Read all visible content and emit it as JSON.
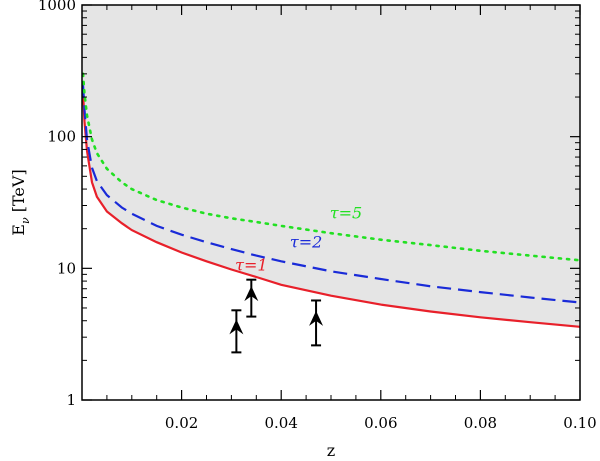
{
  "chart_data": {
    "type": "line",
    "xlabel": "z",
    "ylabel": "E",
    "ylabel_sub": "ν",
    "ylabel_unit": " [TeV]",
    "xlim": [
      0.0,
      0.1
    ],
    "ylim": [
      1,
      1000
    ],
    "yscale": "log",
    "grid": false,
    "x_ticks": [
      {
        "value": 0.02,
        "label": "0.02"
      },
      {
        "value": 0.04,
        "label": "0.04"
      },
      {
        "value": 0.06,
        "label": "0.06"
      },
      {
        "value": 0.08,
        "label": "0.08"
      },
      {
        "value": 0.1,
        "label": "0.10"
      }
    ],
    "y_ticks": [
      {
        "value": 1,
        "label": "1"
      },
      {
        "value": 10,
        "label": "10"
      },
      {
        "value": 100,
        "label": "100"
      },
      {
        "value": 1000,
        "label": "1000"
      }
    ],
    "shaded_region": {
      "above_series": "τ=1",
      "color": "#e5e5e5"
    },
    "series": [
      {
        "name": "τ=1",
        "color": "#e8202a",
        "style": "solid",
        "label_at": {
          "x": 0.034,
          "y": 9.6
        },
        "x": [
          0.0002,
          0.0005,
          0.001,
          0.002,
          0.003,
          0.005,
          0.008,
          0.01,
          0.015,
          0.02,
          0.025,
          0.03,
          0.035,
          0.04,
          0.05,
          0.06,
          0.07,
          0.08,
          0.09,
          0.1
        ],
        "y": [
          220,
          130,
          78,
          45,
          35,
          27,
          22,
          19.5,
          15.8,
          13.2,
          11.3,
          9.8,
          8.6,
          7.5,
          6.2,
          5.3,
          4.7,
          4.25,
          3.9,
          3.6
        ]
      },
      {
        "name": "τ=2",
        "color": "#1a2bd8",
        "style": "dashed",
        "label_at": {
          "x": 0.045,
          "y": 14.4
        },
        "x": [
          0.0002,
          0.0005,
          0.001,
          0.002,
          0.003,
          0.005,
          0.008,
          0.01,
          0.015,
          0.02,
          0.025,
          0.03,
          0.035,
          0.04,
          0.05,
          0.06,
          0.07,
          0.08,
          0.09,
          0.1
        ],
        "y": [
          250,
          160,
          95,
          58,
          46,
          36,
          29,
          26,
          21,
          18,
          15.8,
          14,
          12.5,
          11.3,
          9.5,
          8.3,
          7.3,
          6.6,
          6,
          5.5
        ]
      },
      {
        "name": "τ=5",
        "color": "#22e022",
        "style": "dotted",
        "label_at": {
          "x": 0.053,
          "y": 24
        },
        "x": [
          0.0002,
          0.0005,
          0.001,
          0.002,
          0.003,
          0.005,
          0.008,
          0.01,
          0.015,
          0.02,
          0.025,
          0.03,
          0.035,
          0.04,
          0.05,
          0.06,
          0.07,
          0.08,
          0.09,
          0.1
        ],
        "y": [
          300,
          210,
          145,
          95,
          75,
          57,
          45,
          40,
          33,
          29,
          26,
          24,
          22.5,
          21,
          18.5,
          16.5,
          15,
          13.6,
          12.5,
          11.5
        ]
      }
    ],
    "lower_limits": [
      {
        "x": 0.031,
        "y": 2.3,
        "y_top": 4.8
      },
      {
        "x": 0.034,
        "y": 4.3,
        "y_top": 8.2
      },
      {
        "x": 0.047,
        "y": 2.6,
        "y_top": 5.7
      }
    ]
  }
}
